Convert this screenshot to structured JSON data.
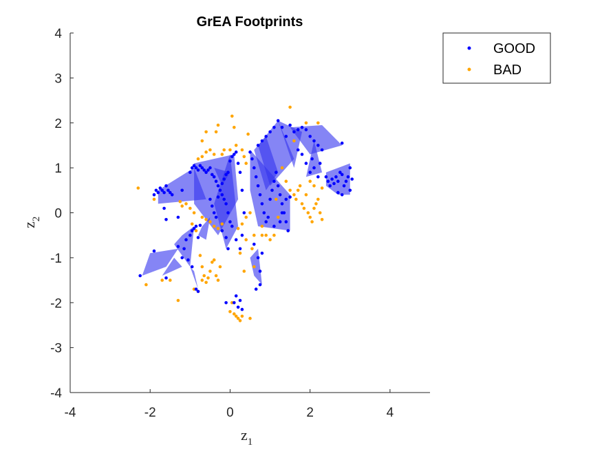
{
  "chart_data": {
    "type": "scatter",
    "title": "GrEA Footprints",
    "xlabel_base": "z",
    "xlabel_sub": "1",
    "ylabel_base": "z",
    "ylabel_sub": "2",
    "xlim": [
      -4,
      5
    ],
    "ylim": [
      -4,
      4
    ],
    "xticks": [
      -4,
      -2,
      0,
      2,
      4
    ],
    "yticks": [
      -4,
      -3,
      -2,
      -1,
      0,
      1,
      2,
      3,
      4
    ],
    "grid": false,
    "legend_position": "top-right outside",
    "colors": {
      "good": "#0000ff",
      "bad": "#ffa500",
      "footprint_fill": "#3333ee"
    },
    "footprints": [
      [
        [
          -1.8,
          0.5
        ],
        [
          -0.9,
          1.0
        ],
        [
          -0.6,
          0.3
        ],
        [
          -1.8,
          0.2
        ]
      ],
      [
        [
          -0.9,
          1.1
        ],
        [
          0.1,
          1.3
        ],
        [
          0.2,
          0.3
        ],
        [
          -0.3,
          -0.5
        ],
        [
          -0.9,
          0.2
        ]
      ],
      [
        [
          0.0,
          1.3
        ],
        [
          0.2,
          -0.3
        ],
        [
          -0.1,
          -0.8
        ],
        [
          -0.4,
          0.2
        ]
      ],
      [
        [
          0.5,
          1.4
        ],
        [
          1.5,
          0.4
        ],
        [
          1.5,
          -0.4
        ],
        [
          0.7,
          -0.3
        ],
        [
          0.5,
          0.5
        ]
      ],
      [
        [
          0.6,
          1.4
        ],
        [
          0.9,
          1.7
        ],
        [
          1.2,
          0.9
        ],
        [
          0.9,
          0.5
        ]
      ],
      [
        [
          0.7,
          1.5
        ],
        [
          1.2,
          2.05
        ],
        [
          1.6,
          1.2
        ],
        [
          1.0,
          0.6
        ]
      ],
      [
        [
          1.2,
          2.05
        ],
        [
          1.6,
          1.0
        ],
        [
          1.8,
          1.8
        ]
      ],
      [
        [
          1.5,
          1.9
        ],
        [
          2.3,
          1.95
        ],
        [
          2.8,
          1.5
        ],
        [
          2.0,
          1.3
        ]
      ],
      [
        [
          2.1,
          1.6
        ],
        [
          2.3,
          0.9
        ],
        [
          1.9,
          0.8
        ]
      ],
      [
        [
          2.4,
          0.9
        ],
        [
          3.0,
          1.1
        ],
        [
          3.0,
          0.4
        ],
        [
          2.7,
          0.4
        ],
        [
          2.4,
          0.6
        ]
      ],
      [
        [
          -1.2,
          -0.5
        ],
        [
          -0.9,
          -0.3
        ],
        [
          -1.0,
          -1.2
        ],
        [
          -1.4,
          -0.7
        ]
      ],
      [
        [
          -2.2,
          -1.4
        ],
        [
          -1.6,
          -1.2
        ],
        [
          -1.3,
          -0.8
        ],
        [
          -2.0,
          -0.9
        ]
      ],
      [
        [
          -0.7,
          -0.3
        ],
        [
          -0.5,
          -0.1
        ],
        [
          -0.6,
          -0.6
        ],
        [
          -0.8,
          -0.5
        ]
      ],
      [
        [
          0.7,
          -0.8
        ],
        [
          0.8,
          -1.6
        ],
        [
          0.6,
          -1.4
        ],
        [
          0.5,
          -1.0
        ]
      ],
      [
        [
          -1.0,
          -1.2
        ],
        [
          -0.8,
          -1.7
        ],
        [
          -0.9,
          -1.3
        ]
      ],
      [
        [
          -1.7,
          -1.4
        ],
        [
          -1.4,
          -1.0
        ],
        [
          -1.2,
          -1.2
        ]
      ],
      [
        [
          -0.4,
          1.0
        ],
        [
          -0.2,
          0.6
        ],
        [
          0.0,
          0.9
        ]
      ]
    ],
    "series": [
      {
        "name": "GOOD",
        "points": [
          [
            -2.25,
            -1.4
          ],
          [
            -1.9,
            -0.85
          ],
          [
            -1.6,
            -1.45
          ],
          [
            -1.3,
            -0.75
          ],
          [
            -1.15,
            -0.8
          ],
          [
            -1.1,
            -0.6
          ],
          [
            -1.0,
            -0.5
          ],
          [
            -0.95,
            -0.4
          ],
          [
            -0.9,
            -0.35
          ],
          [
            -0.85,
            -0.3
          ],
          [
            -0.8,
            -0.55
          ],
          [
            -0.75,
            -0.28
          ],
          [
            -1.05,
            -1.05
          ],
          [
            -0.95,
            -1.2
          ],
          [
            -0.85,
            -1.7
          ],
          [
            -0.8,
            -1.75
          ],
          [
            -1.2,
            -1.0
          ],
          [
            -1.85,
            0.5
          ],
          [
            -1.8,
            0.45
          ],
          [
            -1.75,
            0.55
          ],
          [
            -1.7,
            0.5
          ],
          [
            -1.65,
            0.45
          ],
          [
            -1.6,
            0.6
          ],
          [
            -1.55,
            0.5
          ],
          [
            -1.5,
            0.45
          ],
          [
            -1.45,
            0.4
          ],
          [
            -1.2,
            0.5
          ],
          [
            -1.0,
            0.9
          ],
          [
            -0.95,
            1.0
          ],
          [
            -0.9,
            1.05
          ],
          [
            -0.85,
            1.0
          ],
          [
            -0.8,
            0.95
          ],
          [
            -0.75,
            1.05
          ],
          [
            -0.7,
            1.0
          ],
          [
            -0.65,
            0.95
          ],
          [
            -0.6,
            0.9
          ],
          [
            -0.55,
            0.95
          ],
          [
            -0.5,
            1.0
          ],
          [
            -0.45,
            0.85
          ],
          [
            -0.4,
            0.8
          ],
          [
            -0.35,
            0.7
          ],
          [
            -0.3,
            0.6
          ],
          [
            -0.25,
            0.5
          ],
          [
            -0.2,
            0.4
          ],
          [
            -0.15,
            0.3
          ],
          [
            -0.1,
            0.2
          ],
          [
            -0.05,
            0.0
          ],
          [
            0.0,
            -0.2
          ],
          [
            0.05,
            -0.3
          ],
          [
            -0.5,
            0.3
          ],
          [
            -0.45,
            0.15
          ],
          [
            -0.4,
            0.0
          ],
          [
            -0.35,
            -0.1
          ],
          [
            -0.3,
            0.35
          ],
          [
            -0.2,
            0.65
          ],
          [
            -0.15,
            0.75
          ],
          [
            -0.1,
            0.85
          ],
          [
            -0.05,
            0.9
          ],
          [
            0.0,
            1.15
          ],
          [
            0.05,
            1.25
          ],
          [
            0.1,
            1.3
          ],
          [
            0.15,
            1.35
          ],
          [
            0.2,
            1.1
          ],
          [
            0.25,
            0.9
          ],
          [
            0.3,
            0.5
          ],
          [
            0.35,
            0.0
          ],
          [
            0.3,
            -0.5
          ],
          [
            0.25,
            -0.8
          ],
          [
            0.15,
            -0.6
          ],
          [
            -0.05,
            -0.8
          ],
          [
            -0.1,
            -0.55
          ],
          [
            -0.2,
            -0.4
          ],
          [
            -1.9,
            0.4
          ],
          [
            -1.65,
            0.1
          ],
          [
            -1.6,
            -0.15
          ],
          [
            -1.3,
            -0.1
          ],
          [
            0.5,
            1.35
          ],
          [
            0.55,
            1.2
          ],
          [
            0.6,
            1.0
          ],
          [
            0.65,
            0.8
          ],
          [
            0.7,
            0.6
          ],
          [
            0.75,
            0.4
          ],
          [
            0.8,
            0.2
          ],
          [
            0.85,
            0.0
          ],
          [
            0.9,
            -0.2
          ],
          [
            0.95,
            -0.1
          ],
          [
            1.0,
            0.3
          ],
          [
            1.05,
            0.5
          ],
          [
            1.1,
            0.7
          ],
          [
            1.15,
            0.9
          ],
          [
            1.2,
            0.6
          ],
          [
            1.25,
            0.4
          ],
          [
            1.3,
            0.2
          ],
          [
            1.35,
            0.0
          ],
          [
            1.4,
            -0.2
          ],
          [
            1.45,
            -0.4
          ],
          [
            0.7,
            1.5
          ],
          [
            0.8,
            1.6
          ],
          [
            0.9,
            1.7
          ],
          [
            1.0,
            1.8
          ],
          [
            1.1,
            1.9
          ],
          [
            1.2,
            2.05
          ],
          [
            1.3,
            1.9
          ],
          [
            1.4,
            1.7
          ],
          [
            1.5,
            1.95
          ],
          [
            1.6,
            1.8
          ],
          [
            1.7,
            1.85
          ],
          [
            1.8,
            1.9
          ],
          [
            1.9,
            1.85
          ],
          [
            2.0,
            1.7
          ],
          [
            2.1,
            1.6
          ],
          [
            2.2,
            1.5
          ],
          [
            2.3,
            1.4
          ],
          [
            2.8,
            1.55
          ],
          [
            1.7,
            1.4
          ],
          [
            1.8,
            1.3
          ],
          [
            1.9,
            1.1
          ],
          [
            2.0,
            0.9
          ],
          [
            2.05,
            1.2
          ],
          [
            2.1,
            1.0
          ],
          [
            2.2,
            0.8
          ],
          [
            2.25,
            1.1
          ],
          [
            2.4,
            0.8
          ],
          [
            2.45,
            0.7
          ],
          [
            2.5,
            0.6
          ],
          [
            2.55,
            0.75
          ],
          [
            2.6,
            0.65
          ],
          [
            2.65,
            0.8
          ],
          [
            2.7,
            0.7
          ],
          [
            2.75,
            0.9
          ],
          [
            2.8,
            0.85
          ],
          [
            2.85,
            0.6
          ],
          [
            2.9,
            0.7
          ],
          [
            2.95,
            0.8
          ],
          [
            3.0,
            1.0
          ],
          [
            3.0,
            0.5
          ],
          [
            3.05,
            0.75
          ],
          [
            2.7,
            0.45
          ],
          [
            2.8,
            0.4
          ],
          [
            0.6,
            -0.7
          ],
          [
            0.7,
            -1.0
          ],
          [
            0.75,
            -1.3
          ],
          [
            0.8,
            -0.9
          ],
          [
            0.75,
            -1.6
          ],
          [
            0.65,
            -1.7
          ],
          [
            0.1,
            -2.0
          ],
          [
            0.2,
            -2.1
          ],
          [
            0.25,
            -1.95
          ],
          [
            0.15,
            -1.85
          ],
          [
            -0.1,
            -2.0
          ],
          [
            0.3,
            -2.15
          ],
          [
            1.3,
            0.0
          ],
          [
            1.4,
            0.3
          ],
          [
            1.5,
            0.35
          ],
          [
            1.25,
            -0.2
          ],
          [
            1.1,
            -0.3
          ]
        ]
      },
      {
        "name": "BAD",
        "points": [
          [
            -2.3,
            0.55
          ],
          [
            -2.1,
            -1.6
          ],
          [
            -1.9,
            0.3
          ],
          [
            -1.7,
            -1.5
          ],
          [
            -1.5,
            -1.5
          ],
          [
            -1.3,
            -1.95
          ],
          [
            -1.25,
            0.25
          ],
          [
            -1.2,
            0.15
          ],
          [
            -1.1,
            0.2
          ],
          [
            -1.0,
            0.1
          ],
          [
            -0.9,
            0.0
          ],
          [
            -0.95,
            -0.25
          ],
          [
            -0.85,
            -0.4
          ],
          [
            -0.75,
            -0.95
          ],
          [
            -0.7,
            -1.2
          ],
          [
            -0.65,
            -1.4
          ],
          [
            -0.6,
            -1.55
          ],
          [
            -0.55,
            -1.45
          ],
          [
            -0.5,
            -1.3
          ],
          [
            -0.45,
            -1.1
          ],
          [
            -0.4,
            -1.05
          ],
          [
            -0.35,
            -1.4
          ],
          [
            -0.3,
            -1.5
          ],
          [
            -0.25,
            -1.2
          ],
          [
            -0.9,
            -1.7
          ],
          [
            -0.8,
            -1.75
          ],
          [
            -0.7,
            -1.5
          ],
          [
            -0.8,
            1.2
          ],
          [
            -0.7,
            1.25
          ],
          [
            -0.6,
            1.35
          ],
          [
            -0.7,
            1.6
          ],
          [
            -0.6,
            1.8
          ],
          [
            -0.5,
            1.4
          ],
          [
            -0.4,
            1.3
          ],
          [
            -0.35,
            1.8
          ],
          [
            -0.3,
            1.95
          ],
          [
            -0.2,
            1.3
          ],
          [
            -0.15,
            1.4
          ],
          [
            0.0,
            1.4
          ],
          [
            0.05,
            2.15
          ],
          [
            0.1,
            1.9
          ],
          [
            0.15,
            1.5
          ],
          [
            0.3,
            1.4
          ],
          [
            0.35,
            1.25
          ],
          [
            0.4,
            1.1
          ],
          [
            0.45,
            1.75
          ],
          [
            -0.7,
            -0.1
          ],
          [
            -0.6,
            -0.15
          ],
          [
            -0.5,
            -0.2
          ],
          [
            -0.4,
            -0.3
          ],
          [
            -0.3,
            -0.35
          ],
          [
            -0.2,
            -0.25
          ],
          [
            0.2,
            -0.35
          ],
          [
            0.3,
            -0.25
          ],
          [
            0.4,
            -0.1
          ],
          [
            0.5,
            0.0
          ],
          [
            0.55,
            -0.8
          ],
          [
            0.6,
            -1.2
          ],
          [
            0.35,
            -1.3
          ],
          [
            0.25,
            -0.9
          ],
          [
            0.8,
            -0.5
          ],
          [
            0.0,
            -2.2
          ],
          [
            0.1,
            -2.25
          ],
          [
            0.15,
            -2.3
          ],
          [
            0.2,
            -2.35
          ],
          [
            0.25,
            -2.4
          ],
          [
            0.3,
            -2.3
          ],
          [
            0.5,
            -2.35
          ],
          [
            0.05,
            -2.0
          ],
          [
            1.3,
            1.0
          ],
          [
            1.4,
            0.7
          ],
          [
            1.5,
            0.5
          ],
          [
            1.6,
            0.4
          ],
          [
            1.65,
            0.3
          ],
          [
            1.7,
            0.5
          ],
          [
            1.75,
            0.6
          ],
          [
            1.8,
            0.2
          ],
          [
            1.85,
            0.1
          ],
          [
            1.9,
            0.4
          ],
          [
            1.95,
            0.0
          ],
          [
            2.0,
            -0.1
          ],
          [
            2.05,
            -0.2
          ],
          [
            2.1,
            0.1
          ],
          [
            2.15,
            0.2
          ],
          [
            2.2,
            0.3
          ],
          [
            2.25,
            0.0
          ],
          [
            2.3,
            -0.15
          ],
          [
            1.5,
            2.35
          ],
          [
            1.6,
            1.6
          ],
          [
            1.9,
            2.0
          ],
          [
            2.2,
            2.0
          ],
          [
            2.1,
            0.6
          ],
          [
            2.3,
            0.55
          ],
          [
            2.0,
            0.7
          ],
          [
            1.2,
            -0.1
          ],
          [
            1.15,
            0.3
          ],
          [
            1.1,
            -0.5
          ],
          [
            0.8,
            -0.3
          ],
          [
            0.9,
            -0.5
          ],
          [
            1.0,
            -0.6
          ],
          [
            0.4,
            -0.6
          ],
          [
            0.6,
            -0.5
          ]
        ]
      }
    ]
  }
}
